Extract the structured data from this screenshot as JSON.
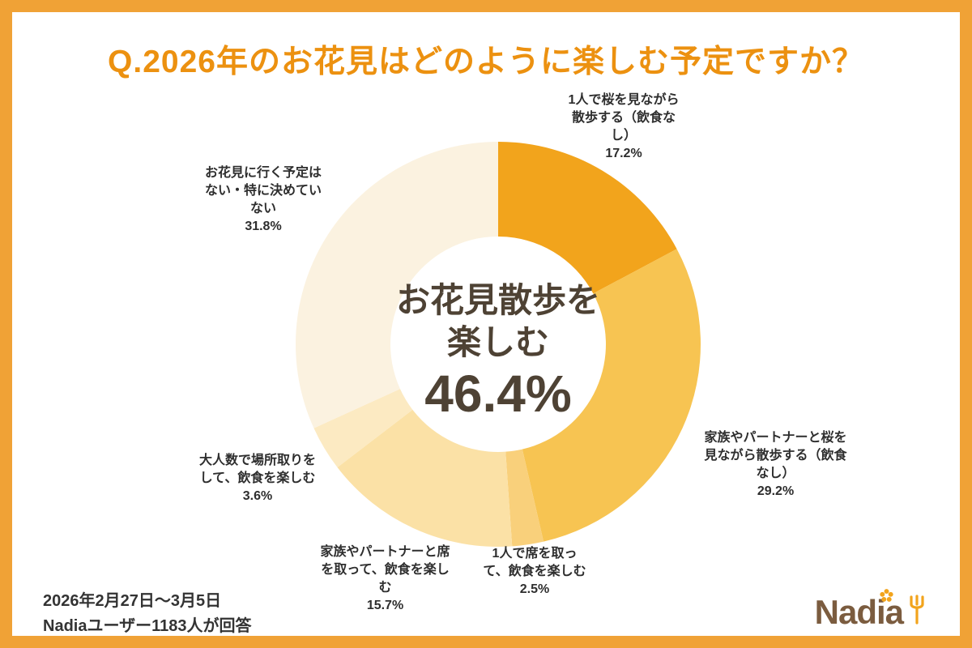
{
  "page": {
    "background": "#FFFFFF",
    "border_color": "#F0A236"
  },
  "chart_data": {
    "type": "pie",
    "subtype": "donut",
    "title": "Q.2026年のお花見はどのように楽しむ予定ですか？",
    "start_angle_deg": 0,
    "direction": "clockwise",
    "inner_radius_ratio": 0.53,
    "legend": "none",
    "center_label": {
      "line1": "お花見散歩を",
      "line2": "楽しむ",
      "value": "46.4%"
    },
    "segments": [
      {
        "label": "1人で桜を見ながら散歩する（飲食なし）",
        "value": 17.2,
        "display": "17.2%",
        "color": "#F2A41C"
      },
      {
        "label": "家族やパートナーと桜を見ながら散歩する（飲食なし）",
        "value": 29.2,
        "display": "29.2%",
        "color": "#F7C452"
      },
      {
        "label": "1人で席を取って、飲食を楽しむ",
        "value": 2.5,
        "display": "2.5%",
        "color": "#F9D07B"
      },
      {
        "label": "家族やパートナーと席を取って、飲食を楽しむ",
        "value": 15.7,
        "display": "15.7%",
        "color": "#FBE1A6"
      },
      {
        "label": "大人数で場所取りをして、飲食を楽しむ",
        "value": 3.6,
        "display": "3.6%",
        "color": "#FCEAC2"
      },
      {
        "label": "お花見に行く予定はない・特に決めていない",
        "value": 31.8,
        "display": "31.8%",
        "color": "#FBF2E0"
      }
    ]
  },
  "footer": {
    "survey_period": "2026年2月27日〜3月5日",
    "respondents": "Nadiaユーザー1183人が回答"
  },
  "logo": {
    "text": "Nadia",
    "icons": [
      "flower-icon",
      "fork-icon"
    ],
    "text_color": "#7B5C3F",
    "accent_color": "#F2A41C"
  }
}
